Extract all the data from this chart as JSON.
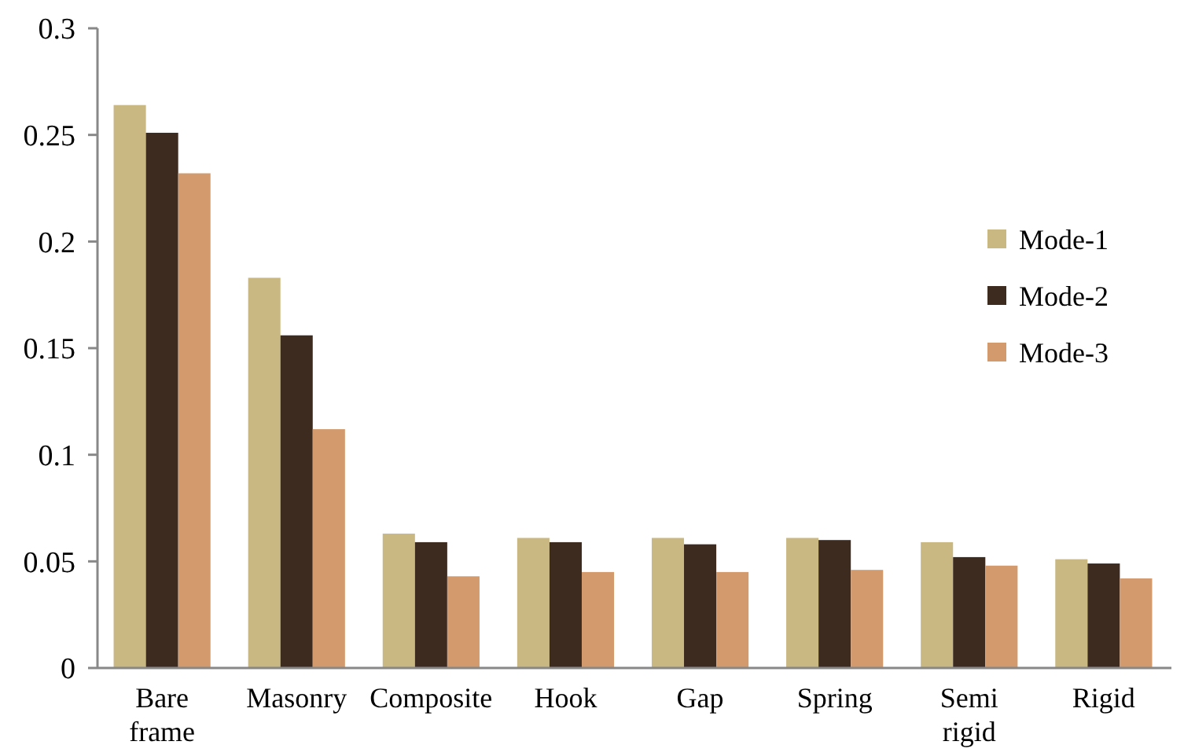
{
  "chart_data": {
    "type": "bar",
    "categories": [
      "Bare\nframe",
      "Masonry",
      "Composite",
      "Hook",
      "Gap",
      "Spring",
      "Semi\nrigid",
      "Rigid"
    ],
    "series": [
      {
        "name": "Mode-1",
        "color": "#c9b882",
        "values": [
          0.264,
          0.183,
          0.063,
          0.061,
          0.061,
          0.061,
          0.059,
          0.051
        ]
      },
      {
        "name": "Mode-2",
        "color": "#3d2b20",
        "values": [
          0.251,
          0.156,
          0.059,
          0.059,
          0.058,
          0.06,
          0.052,
          0.049
        ]
      },
      {
        "name": "Mode-3",
        "color": "#d39a6e",
        "values": [
          0.232,
          0.112,
          0.043,
          0.045,
          0.045,
          0.046,
          0.048,
          0.042
        ]
      }
    ],
    "ylim": [
      0,
      0.3
    ],
    "yticks": [
      0,
      0.05,
      {
        "value": 0.1,
        "label": "0.1"
      },
      0.15,
      {
        "value": 0.2,
        "label": "0.2"
      },
      0.25,
      {
        "value": 0.3,
        "label": "0.3"
      }
    ],
    "grid": false,
    "legend": "right"
  }
}
